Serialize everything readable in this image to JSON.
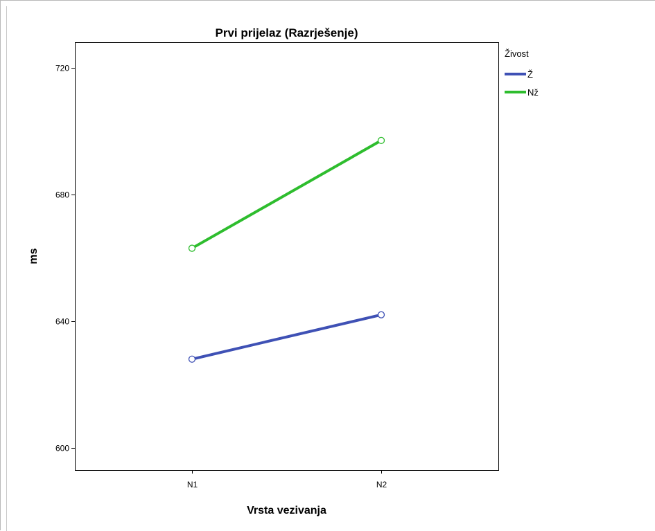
{
  "chart_data": {
    "type": "line",
    "title": "Prvi prijelaz (Razrješenje)",
    "xlabel": "Vrsta vezivanja",
    "ylabel": "ms",
    "categories": [
      "N1",
      "N2"
    ],
    "ylim": [
      593,
      728
    ],
    "yticks": [
      600,
      640,
      680,
      720
    ],
    "grid": false,
    "legend": {
      "title": "Živost",
      "placement": "right"
    },
    "series": [
      {
        "name": "Ž",
        "values": [
          628,
          642
        ],
        "color": "#3f51b5"
      },
      {
        "name": "Nž",
        "values": [
          663,
          697
        ],
        "color": "#2ebd2e"
      }
    ]
  }
}
